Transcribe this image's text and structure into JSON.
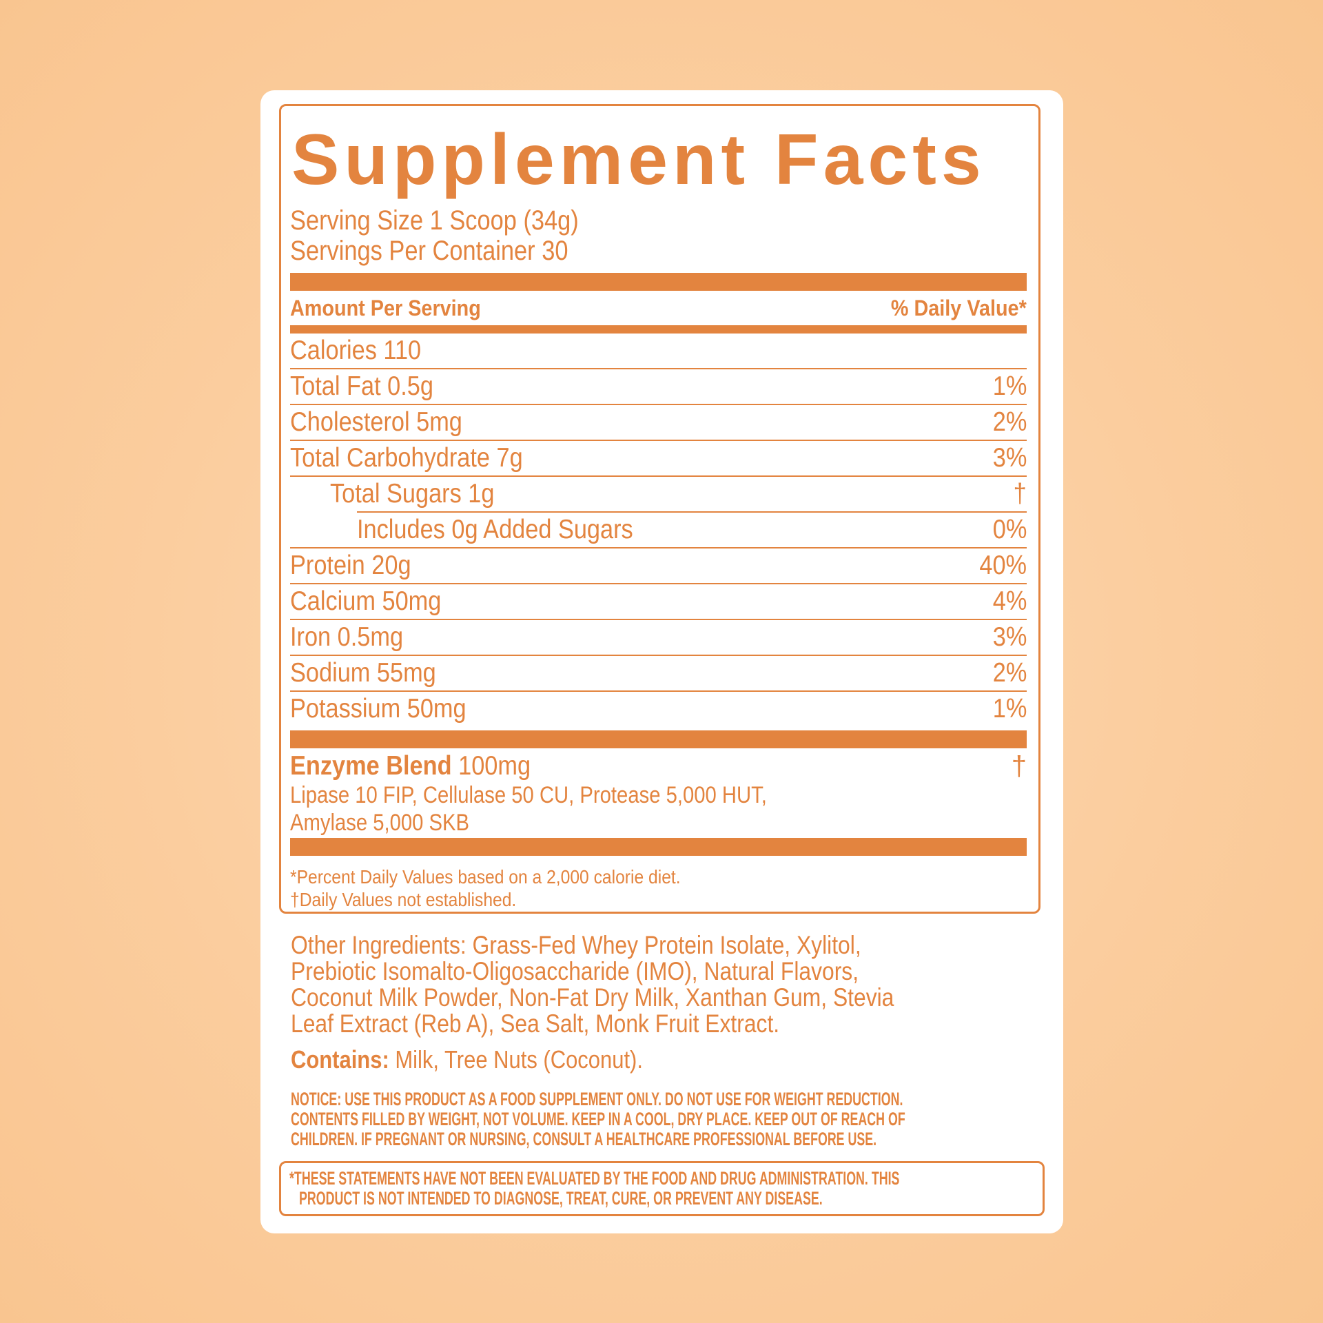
{
  "colors": {
    "accent": "#e3843f",
    "card": "#ffffff",
    "background": "#fbcd9e"
  },
  "title": "Supplement Facts",
  "serving_size": "Serving Size 1 Scoop (34g)",
  "servings_per_container": "Servings Per Container 30",
  "header": {
    "amount": "Amount Per Serving",
    "dv": "% Daily Value*"
  },
  "rows": [
    {
      "label": "Calories 110",
      "dv": ""
    },
    {
      "label": "Total Fat 0.5g",
      "dv": "1%"
    },
    {
      "label": "Cholesterol 5mg",
      "dv": "2%"
    },
    {
      "label": "Total Carbohydrate 7g",
      "dv": "3%"
    },
    {
      "label": "Total Sugars 1g",
      "dv": "†"
    },
    {
      "label": "Includes 0g Added Sugars",
      "dv": "0%"
    },
    {
      "label": "Protein 20g",
      "dv": "40%"
    },
    {
      "label": "Calcium 50mg",
      "dv": "4%"
    },
    {
      "label": "Iron 0.5mg",
      "dv": "3%"
    },
    {
      "label": "Sodium 55mg",
      "dv": "2%"
    },
    {
      "label": "Potassium 50mg",
      "dv": "1%"
    }
  ],
  "enzyme": {
    "name": "Enzyme Blend",
    "amount": "100mg",
    "dv": "†",
    "lines": [
      "Lipase 10 FIP, Cellulase 50 CU, Protease 5,000 HUT,",
      "Amylase 5,000 SKB"
    ]
  },
  "footnotes": [
    "*Percent Daily Values based on a 2,000 calorie diet.",
    "†Daily Values not established."
  ],
  "ingredients": [
    "Other Ingredients: Grass-Fed Whey Protein Isolate, Xylitol,",
    "Prebiotic Isomalto-Oligosaccharide (IMO), Natural Flavors,",
    "Coconut Milk Powder, Non-Fat Dry Milk, Xanthan Gum, Stevia",
    "Leaf Extract (Reb A), Sea Salt, Monk Fruit Extract."
  ],
  "contains": {
    "label": "Contains:",
    "text": "Milk, Tree Nuts (Coconut)."
  },
  "notice": [
    "NOTICE: USE THIS PRODUCT AS A FOOD SUPPLEMENT ONLY. DO NOT USE FOR WEIGHT REDUCTION.",
    "CONTENTS FILLED BY WEIGHT, NOT VOLUME. KEEP IN A COOL, DRY PLACE. KEEP OUT OF REACH OF",
    "CHILDREN. IF PREGNANT OR NURSING, CONSULT A HEALTHCARE PROFESSIONAL BEFORE USE."
  ],
  "disclaimer": [
    "*THESE STATEMENTS HAVE NOT BEEN EVALUATED BY THE FOOD AND DRUG ADMINISTRATION. THIS",
    "PRODUCT IS NOT INTENDED TO DIAGNOSE, TREAT, CURE, OR PREVENT ANY DISEASE."
  ]
}
